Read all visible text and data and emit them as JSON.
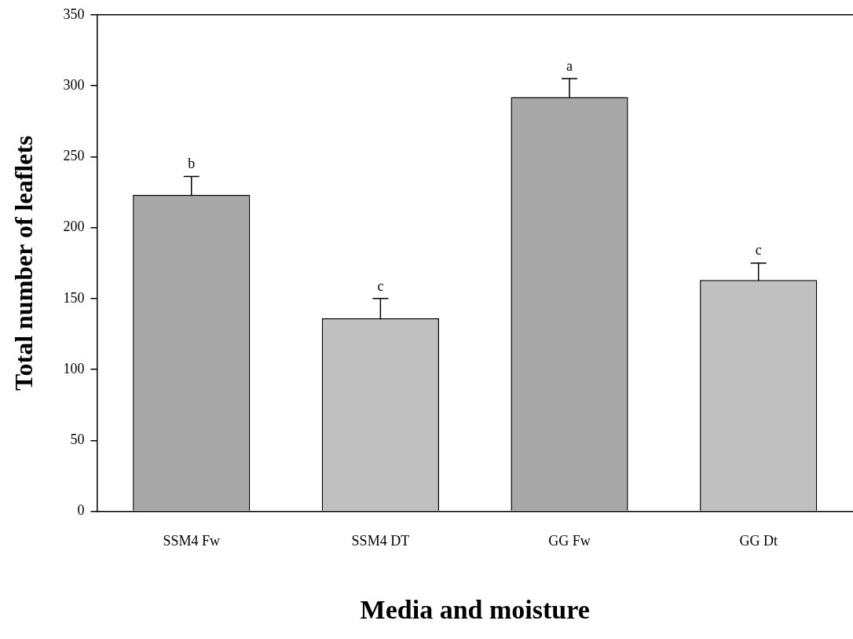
{
  "chart_data": {
    "type": "bar",
    "xlabel": "Media and moisture",
    "ylabel": "Total number of leaflets",
    "categories": [
      "SSM4 Fw",
      "SSM4 DT",
      "GG Fw",
      "GG Dt"
    ],
    "values": [
      223,
      136,
      292,
      163
    ],
    "errors": [
      13,
      14,
      13,
      12
    ],
    "colors": [
      "#a8a8a8",
      "#c0c0c0",
      "#a8a8a8",
      "#c0c0c0"
    ],
    "ylim": [
      0,
      350
    ],
    "yticks": [
      0,
      50,
      100,
      150,
      200,
      250,
      300,
      350
    ],
    "grid": false,
    "legend": false,
    "annotations": [
      {
        "text": "b",
        "x": "SSM4 Fw",
        "y": 236
      },
      {
        "text": "c",
        "x": "SSM4 DT",
        "y": 150
      },
      {
        "text": "a",
        "x": "GG Fw",
        "y": 305
      },
      {
        "text": "c",
        "x": "GG Dt",
        "y": 175
      }
    ]
  }
}
